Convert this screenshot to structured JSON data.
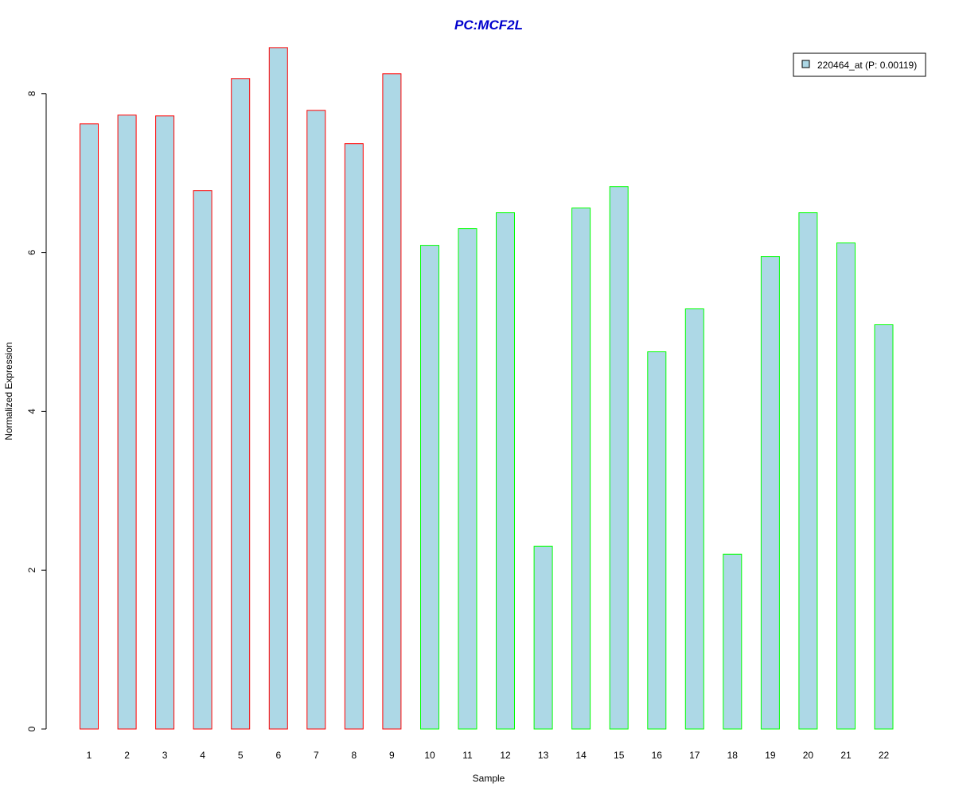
{
  "chart_data": {
    "type": "bar",
    "title": "PC:MCF2L",
    "xlabel": "Sample",
    "ylabel": "Normalized Expression",
    "categories": [
      "1",
      "2",
      "3",
      "4",
      "5",
      "6",
      "7",
      "8",
      "9",
      "10",
      "11",
      "12",
      "13",
      "14",
      "15",
      "16",
      "17",
      "18",
      "19",
      "20",
      "21",
      "22"
    ],
    "series": [
      {
        "name": "220464_at (P: 0.00119)",
        "values": [
          7.62,
          7.73,
          7.72,
          6.78,
          8.19,
          8.58,
          7.79,
          7.37,
          8.25,
          6.09,
          6.3,
          6.5,
          2.3,
          6.56,
          6.83,
          4.75,
          5.29,
          2.2,
          5.95,
          6.5,
          6.12,
          5.09
        ]
      }
    ],
    "bar_border_groups": [
      "red",
      "red",
      "red",
      "red",
      "red",
      "red",
      "red",
      "red",
      "red",
      "green",
      "green",
      "green",
      "green",
      "green",
      "green",
      "green",
      "green",
      "green",
      "green",
      "green",
      "green",
      "green"
    ],
    "y_ticks": [
      0,
      2,
      4,
      6,
      8
    ],
    "ylim": [
      0,
      8.6
    ],
    "grid": false,
    "legend_position": "top-right",
    "colors": {
      "bar_fill": "#add8e6",
      "border_red": "#ff0000",
      "border_green": "#00ff00",
      "title": "#0000cd",
      "axis": "#000000"
    }
  }
}
